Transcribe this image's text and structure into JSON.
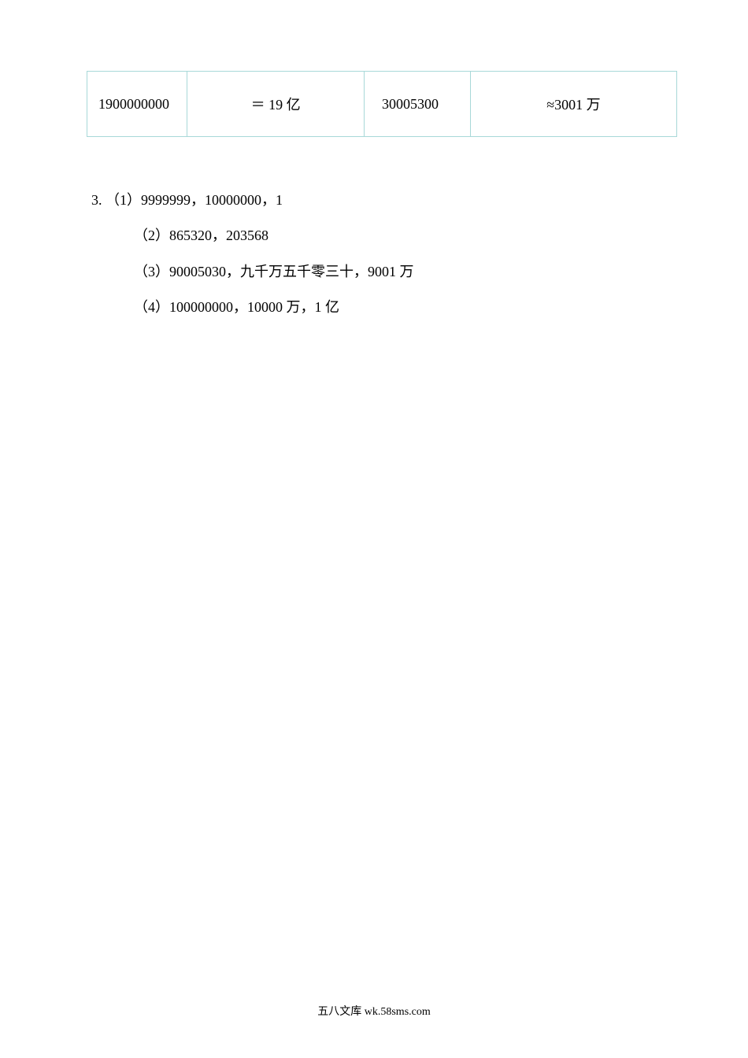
{
  "table": {
    "border_color": "#a8d8d8",
    "background_color": "#ffffff",
    "text_color": "#000000",
    "font_size_pt": 14,
    "columns": [
      {
        "width_pct": 17,
        "align": "left"
      },
      {
        "width_pct": 30,
        "align": "center"
      },
      {
        "width_pct": 18,
        "align": "left"
      },
      {
        "width_pct": 35,
        "align": "center"
      }
    ],
    "rows": [
      {
        "c1": "1900000000",
        "c2": "＝ 19 亿",
        "c3": "30005300",
        "c4": "≈3001 万"
      }
    ]
  },
  "list": {
    "text_color": "#000000",
    "font_size_pt": 14,
    "line_height": 2.3,
    "number": "3. ",
    "items": [
      {
        "label": "（1）9999999，10000000，1"
      },
      {
        "label": "（2）865320，203568"
      },
      {
        "label": "（3）90005030，九千万五千零三十，9001 万"
      },
      {
        "label": "（4）100000000，10000 万，1 亿"
      }
    ]
  },
  "footer": {
    "text": "五八文库 wk.58sms.com",
    "font_size_pt": 10,
    "text_color": "#000000"
  }
}
